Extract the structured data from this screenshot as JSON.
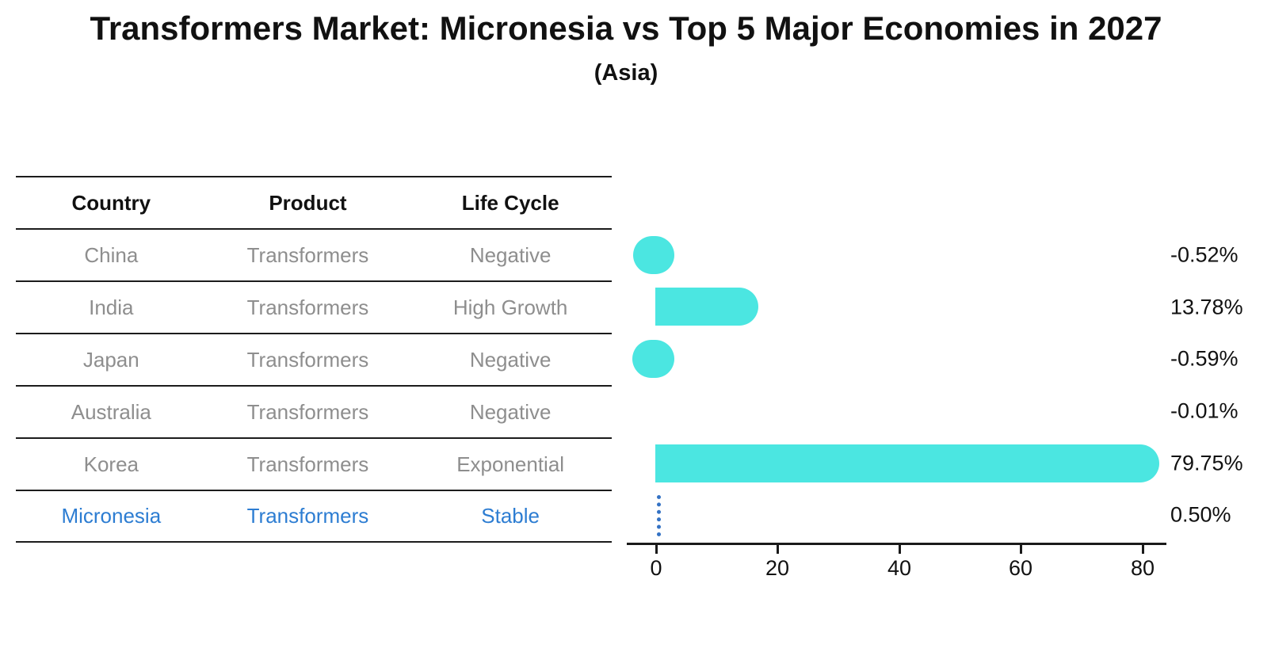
{
  "title": "Transformers Market: Micronesia vs Top 5 Major Economies in 2027",
  "subtitle": "(Asia)",
  "table": {
    "headers": [
      "Country",
      "Product",
      "Life Cycle"
    ],
    "rows": [
      {
        "country": "China",
        "product": "Transformers",
        "life_cycle": "Negative",
        "highlighted": false
      },
      {
        "country": "India",
        "product": "Transformers",
        "life_cycle": "High Growth",
        "highlighted": false
      },
      {
        "country": "Japan",
        "product": "Transformers",
        "life_cycle": "Negative",
        "highlighted": false
      },
      {
        "country": "Australia",
        "product": "Transformers",
        "life_cycle": "Negative",
        "highlighted": false
      },
      {
        "country": "Korea",
        "product": "Transformers",
        "life_cycle": "Exponential",
        "highlighted": false
      },
      {
        "country": "Micronesia",
        "product": "Transformers",
        "life_cycle": "Stable",
        "highlighted": true
      }
    ]
  },
  "chart_data": {
    "type": "bar",
    "orientation": "horizontal",
    "categories": [
      "China",
      "India",
      "Japan",
      "Australia",
      "Korea",
      "Micronesia"
    ],
    "values": [
      -0.52,
      13.78,
      -0.59,
      -0.01,
      79.75,
      0.5
    ],
    "value_labels": [
      "-0.52%",
      "13.78%",
      "-0.59%",
      "-0.01%",
      "79.75%",
      "0.50%"
    ],
    "xticks": [
      0,
      20,
      40,
      60,
      80
    ],
    "xtick_labels": [
      "0",
      "20",
      "40",
      "60",
      "80"
    ],
    "xlim": [
      -4.8,
      84
    ],
    "grid": false,
    "legend": "none",
    "bar_color": "#4be6e1",
    "highlight_index": 5,
    "highlight_marker": "vertical-dotted-line",
    "highlight_color": "#3472c4",
    "highlight_text_color": "#2d7dd2"
  }
}
